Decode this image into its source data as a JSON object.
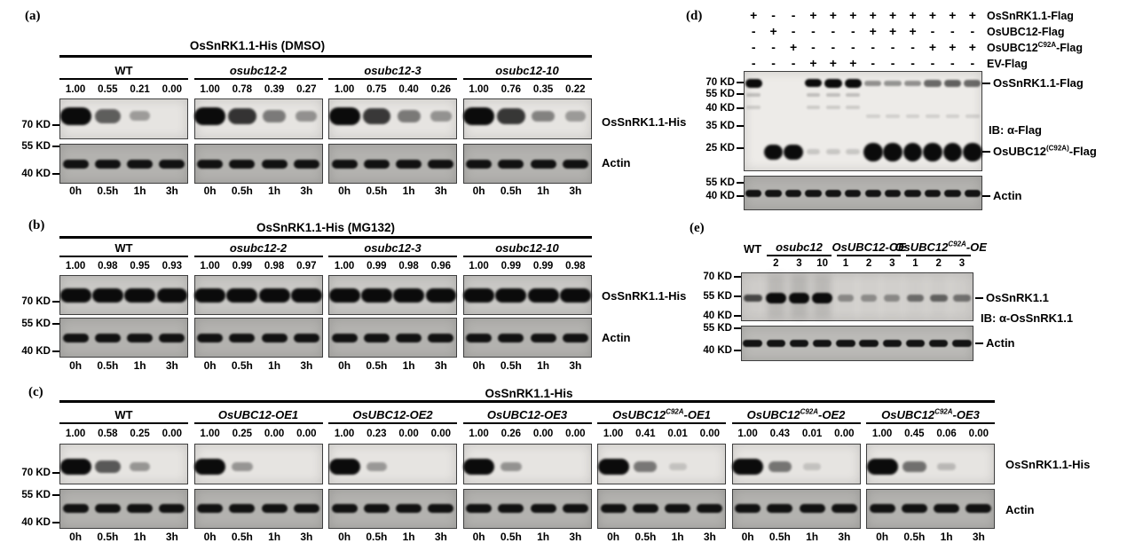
{
  "colors": {
    "page_bg": "#ffffff",
    "text": "#000000",
    "blot_border": "#3f3f3f",
    "band": "#0b0b0b",
    "main_blot_a": "#e6e4e1",
    "main_blot_b": "#c9c8c5",
    "main_blot_c": "#e6e4e1",
    "main_blot_d": "#edebe8",
    "main_blot_e": "#d5d3d0",
    "actin_blot": "#b3b2af",
    "actin_blot_e": "#bbbab7"
  },
  "time_labels": [
    "0h",
    "0.5h",
    "1h",
    "3h"
  ],
  "panel_a": {
    "letter": "(a)",
    "title": "OsSnRK1.1-His (DMSO)",
    "markers": [
      "70 KD",
      "55 KD",
      "40 KD"
    ],
    "side_labels": [
      "OsSnRK1.1-His",
      "Actin"
    ],
    "groups": [
      {
        "pre": "WT",
        "italic": false,
        "values": [
          "1.00",
          "0.55",
          "0.21",
          "0.00"
        ]
      },
      {
        "pre": "osubc12-2",
        "italic": true,
        "values": [
          "1.00",
          "0.78",
          "0.39",
          "0.27"
        ]
      },
      {
        "pre": "osubc12-3",
        "italic": true,
        "values": [
          "1.00",
          "0.75",
          "0.40",
          "0.26"
        ]
      },
      {
        "pre": "osubc12-10",
        "italic": true,
        "values": [
          "1.00",
          "0.76",
          "0.35",
          "0.22"
        ]
      }
    ]
  },
  "panel_b": {
    "letter": "(b)",
    "title": "OsSnRK1.1-His (MG132)",
    "markers": [
      "70 KD",
      "55 KD",
      "40 KD"
    ],
    "side_labels": [
      "OsSnRK1.1-His",
      "Actin"
    ],
    "groups": [
      {
        "pre": "WT",
        "italic": false,
        "values": [
          "1.00",
          "0.98",
          "0.95",
          "0.93"
        ]
      },
      {
        "pre": "osubc12-2",
        "italic": true,
        "values": [
          "1.00",
          "0.99",
          "0.98",
          "0.97"
        ]
      },
      {
        "pre": "osubc12-3",
        "italic": true,
        "values": [
          "1.00",
          "0.99",
          "0.98",
          "0.96"
        ]
      },
      {
        "pre": "osubc12-10",
        "italic": true,
        "values": [
          "1.00",
          "0.99",
          "0.99",
          "0.98"
        ]
      }
    ]
  },
  "panel_c": {
    "letter": "(c)",
    "title": "OsSnRK1.1-His",
    "markers": [
      "70 KD",
      "55 KD",
      "40 KD"
    ],
    "side_labels": [
      "OsSnRK1.1-His",
      "Actin"
    ],
    "groups": [
      {
        "pre": "WT",
        "italic": false,
        "values": [
          "1.00",
          "0.58",
          "0.25",
          "0.00"
        ]
      },
      {
        "pre": "OsUBC12-OE1",
        "italic": true,
        "values": [
          "1.00",
          "0.25",
          "0.00",
          "0.00"
        ]
      },
      {
        "pre": "OsUBC12-OE2",
        "italic": true,
        "values": [
          "1.00",
          "0.23",
          "0.00",
          "0.00"
        ]
      },
      {
        "pre": "OsUBC12-OE3",
        "italic": true,
        "values": [
          "1.00",
          "0.26",
          "0.00",
          "0.00"
        ]
      },
      {
        "pre": "OsUBC12",
        "sup": "C92A",
        "post": "-OE1",
        "italic": true,
        "values": [
          "1.00",
          "0.41",
          "0.01",
          "0.00"
        ]
      },
      {
        "pre": "OsUBC12",
        "sup": "C92A",
        "post": "-OE2",
        "italic": true,
        "values": [
          "1.00",
          "0.43",
          "0.01",
          "0.00"
        ]
      },
      {
        "pre": "OsUBC12",
        "sup": "C92A",
        "post": "-OE3",
        "italic": true,
        "values": [
          "1.00",
          "0.45",
          "0.06",
          "0.00"
        ]
      }
    ]
  },
  "panel_d": {
    "letter": "(d)",
    "rows": [
      {
        "label": {
          "pre": "OsSnRK1.1-Flag"
        },
        "signs": [
          "+",
          "-",
          "-",
          "+",
          "+",
          "+",
          "+",
          "+",
          "+",
          "+",
          "+",
          "+"
        ]
      },
      {
        "label": {
          "pre": "OsUBC12-Flag"
        },
        "signs": [
          "-",
          "+",
          "-",
          "-",
          "-",
          "-",
          "+",
          "+",
          "+",
          "-",
          "-",
          "-"
        ]
      },
      {
        "label": {
          "pre": "OsUBC12",
          "sup": "C92A",
          "post": "-Flag"
        },
        "signs": [
          "-",
          "-",
          "+",
          "-",
          "-",
          "-",
          "-",
          "-",
          "-",
          "+",
          "+",
          "+"
        ]
      },
      {
        "label": {
          "pre": "EV-Flag"
        },
        "signs": [
          "-",
          "-",
          "-",
          "+",
          "+",
          "+",
          "-",
          "-",
          "-",
          "-",
          "-",
          "-"
        ]
      }
    ],
    "markers_main": [
      "70 KD",
      "55 KD",
      "40 KD",
      "35 KD",
      "25 KD"
    ],
    "markers_actin": [
      "55 KD",
      "40 KD"
    ],
    "side_labels": [
      {
        "label": {
          "pre": "OsSnRK1.1-Flag"
        },
        "tick": true
      },
      {
        "label": {
          "pre": "IB: α-Flag"
        },
        "tick": false
      },
      {
        "label": {
          "pre": "OsUBC12",
          "sup": "(C92A)",
          "post": "-Flag"
        },
        "tick": true
      },
      {
        "label": {
          "pre": "Actin"
        },
        "tick": true
      }
    ],
    "bands": {
      "snrk": [
        1,
        0,
        0,
        0.92,
        0.95,
        0.95,
        0.3,
        0.28,
        0.3,
        0.5,
        0.55,
        0.5
      ],
      "ubc": [
        0,
        1,
        1,
        0.1,
        0.08,
        0.1,
        1,
        1,
        1,
        1,
        1,
        1
      ],
      "actin": [
        1,
        1,
        1,
        1,
        1,
        1,
        1,
        1,
        1,
        1,
        1,
        1
      ]
    }
  },
  "panel_e": {
    "letter": "(e)",
    "groups": [
      {
        "pre": "WT",
        "italic": false,
        "lanes": []
      },
      {
        "pre": "osubc12",
        "italic": true,
        "lanes": [
          "2",
          "3",
          "10"
        ]
      },
      {
        "pre": "OsUBC12-OE",
        "italic": true,
        "lanes": [
          "1",
          "2",
          "3"
        ]
      },
      {
        "pre": "OsUBC12",
        "sup": "C92A",
        "post": "-OE",
        "italic": true,
        "lanes": [
          "1",
          "2",
          "3"
        ]
      }
    ],
    "markers_main": [
      "70 KD",
      "55 KD",
      "40 KD"
    ],
    "markers_actin": [
      "55 KD",
      "40 KD"
    ],
    "side_labels": [
      {
        "label": {
          "pre": "OsSnRK1.1"
        },
        "tick": true
      },
      {
        "label": {
          "pre": "IB: α-OsSnRK1.1"
        },
        "tick": false
      },
      {
        "label": {
          "pre": "Actin"
        },
        "tick": true
      }
    ],
    "bands": {
      "snrk": [
        0.72,
        1,
        0.95,
        1,
        0.3,
        0.28,
        0.3,
        0.48,
        0.55,
        0.45
      ],
      "smear": [
        0.1,
        0.4,
        0.45,
        0.4,
        0.05,
        0.05,
        0.05,
        0.08,
        0.1,
        0.08
      ],
      "actin": [
        1,
        1,
        1,
        1,
        1,
        1,
        1,
        1,
        1,
        1
      ]
    }
  }
}
